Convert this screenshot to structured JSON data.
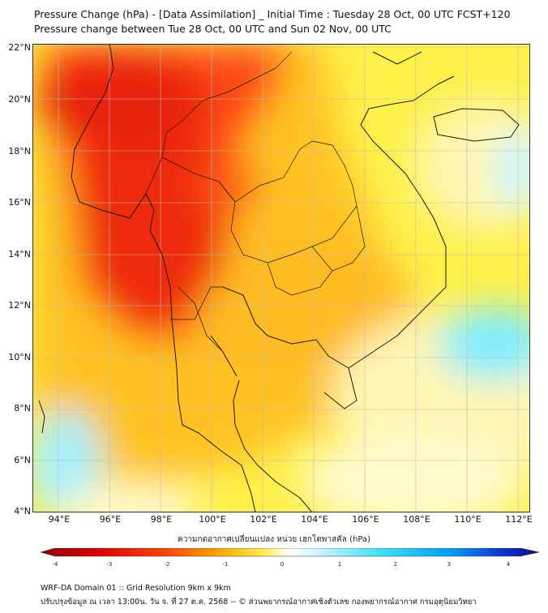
{
  "title_line1": "Pressure Change (hPa) - [Data Assimilation] _ Initial Time : Tuesday 28 Oct, 00 UTC FCST+120",
  "title_line2": "Pressure change between Tue 28 Oct, 00 UTC and Sun 02 Nov, 00 UTC",
  "lat_labels": [
    "22°N",
    "20°N",
    "18°N",
    "16°N",
    "14°N",
    "12°N",
    "10°N",
    "8°N",
    "6°N",
    "4°N"
  ],
  "lon_labels": [
    "94°E",
    "96°E",
    "98°E",
    "100°E",
    "102°E",
    "104°E",
    "106°E",
    "108°E",
    "110°E",
    "112°E"
  ],
  "colorbar": {
    "title": "ความกดอากาศเปลี่ยนแปลง หน่วย เฮกโตพาสคัล (hPa)",
    "ticks": [
      "-4",
      "-3",
      "-2",
      "-1",
      "0",
      "1",
      "2",
      "3",
      "4"
    ],
    "range": [
      -4,
      4
    ],
    "colors": {
      "min": "#8b0000",
      "neg_mid": "#ff2200",
      "neg_low": "#ffd400",
      "zero": "#ffffff",
      "pos_low": "#a8f0ff",
      "pos_mid": "#00c8f0",
      "max": "#0a0a8a"
    }
  },
  "footer_line1": "WRF-DA Domain 01 :: Grid Resolution 9km x 9km",
  "footer_line2": "ปรับปรุงข้อมูล ณ เวลา 13:00น. วัน จ. ที่ 27 ต.ค. 2568 -- © ส่วนพยากรณ์อากาศเชิงตัวเลข กองพยากรณ์อากาศ กรมอุตุนิยมวิทยา"
}
